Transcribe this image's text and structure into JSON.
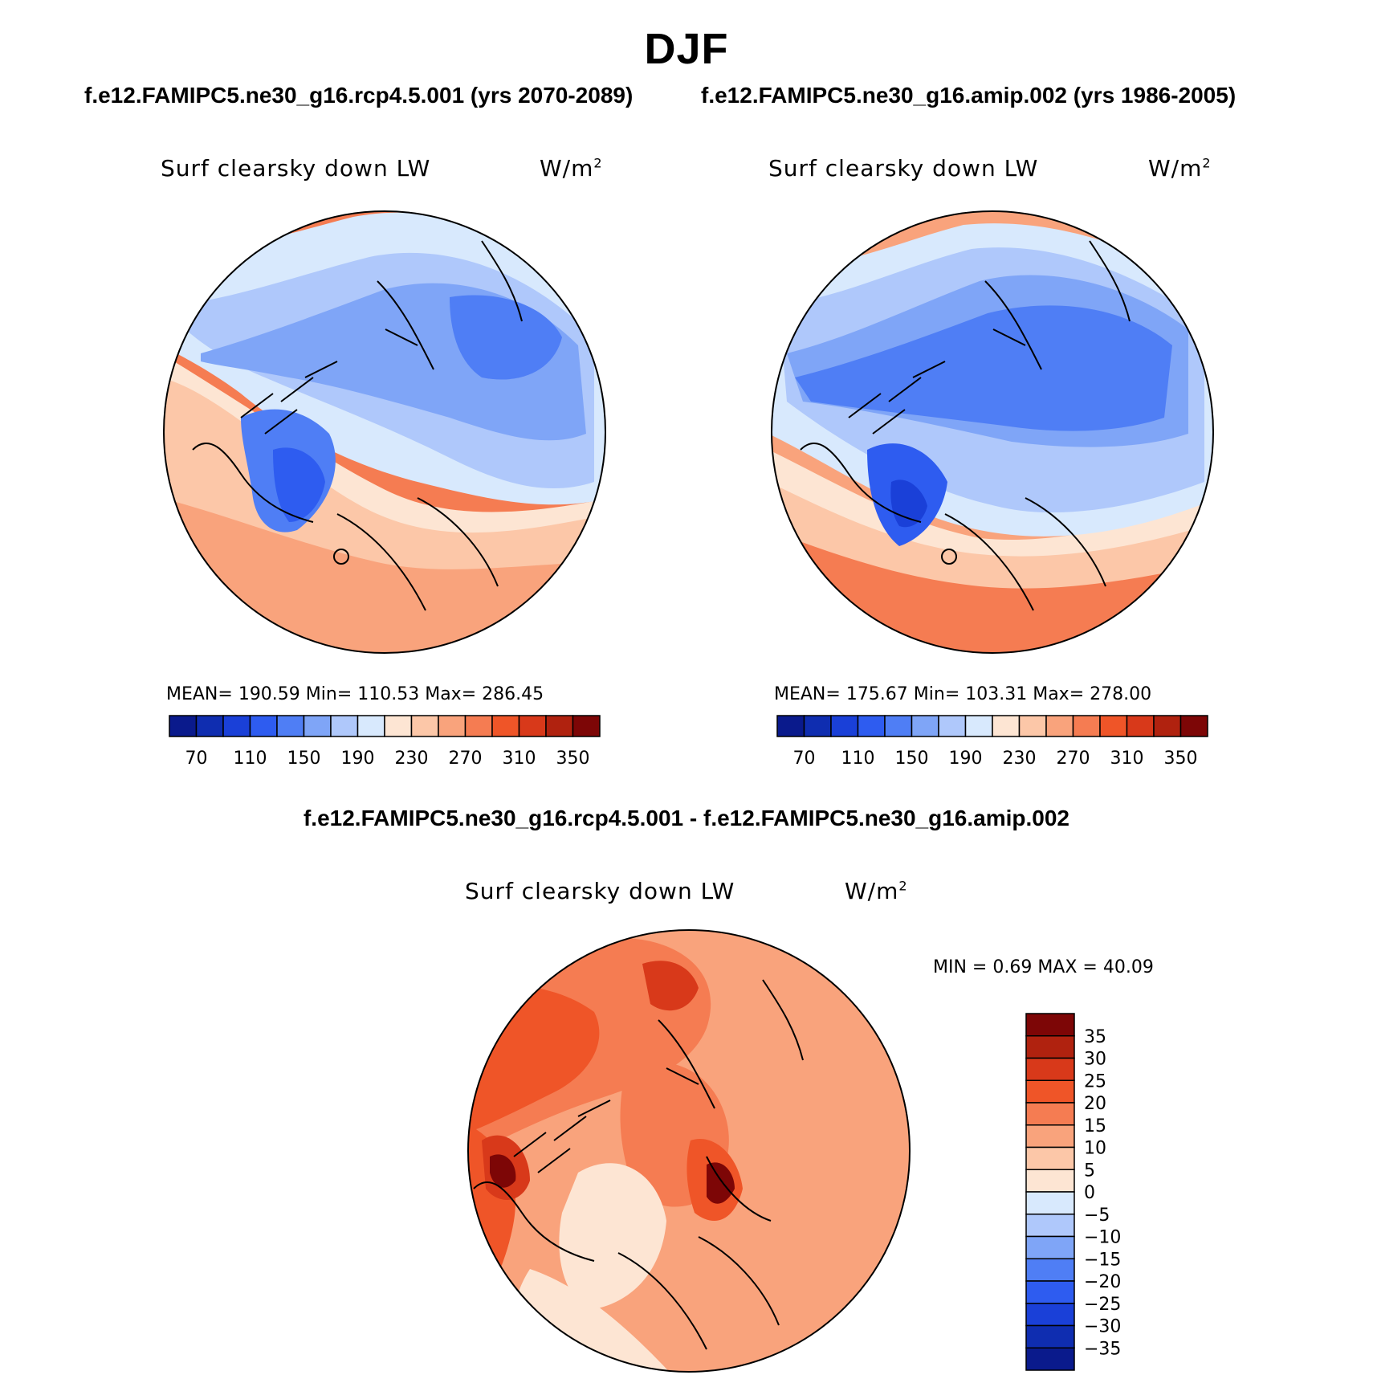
{
  "title": "DJF",
  "case_titles": {
    "left": "f.e12.FAMIPC5.ne30_g16.rcp4.5.001 (yrs 2070-2089)",
    "right": "f.e12.FAMIPC5.ne30_g16.amip.002 (yrs 1986-2005)",
    "diff": "f.e12.FAMIPC5.ne30_g16.rcp4.5.001 - f.e12.FAMIPC5.ne30_g16.amip.002"
  },
  "panels": [
    {
      "id": "rcp45",
      "variable": "Surf clearsky down LW",
      "units": "W/m",
      "units_sup": "2",
      "stats": "MEAN= 190.59   Min= 110.53   Max= 286.45"
    },
    {
      "id": "amip",
      "variable": "Surf clearsky down LW",
      "units": "W/m",
      "units_sup": "2",
      "stats": "MEAN= 175.67   Min= 103.31   Max= 278.00"
    },
    {
      "id": "difference",
      "variable": "Surf clearsky down LW",
      "units": "W/m",
      "units_sup": "2",
      "stats": "MIN =    0.69  MAX =   40.09"
    }
  ],
  "chart_data": [
    {
      "type": "heatmap",
      "projection": "north polar stereographic",
      "title": "Surf clearsky down LW",
      "units": "W/m^2",
      "mean": 190.59,
      "min": 110.53,
      "max": 286.45,
      "colorbar_levels": [
        50,
        70,
        90,
        110,
        130,
        150,
        170,
        190,
        210,
        230,
        250,
        270,
        290,
        310,
        330,
        350,
        370
      ],
      "colorbar_tick_labels": [
        "70",
        "110",
        "150",
        "190",
        "230",
        "270",
        "310",
        "350"
      ],
      "colorbar_colors": [
        "#0a1a8c",
        "#0f2db0",
        "#1a40d8",
        "#2e5cf0",
        "#4f7ef5",
        "#7fa5f7",
        "#afc8fb",
        "#d8e9fd",
        "#fde5d3",
        "#fcc7a8",
        "#f9a37c",
        "#f57c52",
        "#ef5528",
        "#d8391a",
        "#b0220f",
        "#7d0606"
      ]
    },
    {
      "type": "heatmap",
      "projection": "north polar stereographic",
      "title": "Surf clearsky down LW",
      "units": "W/m^2",
      "mean": 175.67,
      "min": 103.31,
      "max": 278.0,
      "colorbar_levels": [
        50,
        70,
        90,
        110,
        130,
        150,
        170,
        190,
        210,
        230,
        250,
        270,
        290,
        310,
        330,
        350,
        370
      ],
      "colorbar_tick_labels": [
        "70",
        "110",
        "150",
        "190",
        "230",
        "270",
        "310",
        "350"
      ],
      "colorbar_colors": [
        "#0a1a8c",
        "#0f2db0",
        "#1a40d8",
        "#2e5cf0",
        "#4f7ef5",
        "#7fa5f7",
        "#afc8fb",
        "#d8e9fd",
        "#fde5d3",
        "#fcc7a8",
        "#f9a37c",
        "#f57c52",
        "#ef5528",
        "#d8391a",
        "#b0220f",
        "#7d0606"
      ]
    },
    {
      "type": "heatmap",
      "projection": "north polar stereographic",
      "title": "Surf clearsky down LW (difference)",
      "units": "W/m^2",
      "min": 0.69,
      "max": 40.09,
      "colorbar_levels": [
        -40,
        -35,
        -30,
        -25,
        -20,
        -15,
        -10,
        -5,
        0,
        5,
        10,
        15,
        20,
        25,
        30,
        35,
        40
      ],
      "colorbar_tick_labels": [
        "35",
        "30",
        "25",
        "20",
        "15",
        "10",
        "5",
        "0",
        "−5",
        "−10",
        "−15",
        "−20",
        "−25",
        "−30",
        "−35"
      ],
      "colorbar_colors": [
        "#7d0606",
        "#b0220f",
        "#d8391a",
        "#ef5528",
        "#f57c52",
        "#f9a37c",
        "#fcc7a8",
        "#fde5d3",
        "#d8e9fd",
        "#afc8fb",
        "#7fa5f7",
        "#4f7ef5",
        "#2e5cf0",
        "#1a40d8",
        "#0f2db0",
        "#0a1a8c"
      ]
    }
  ]
}
